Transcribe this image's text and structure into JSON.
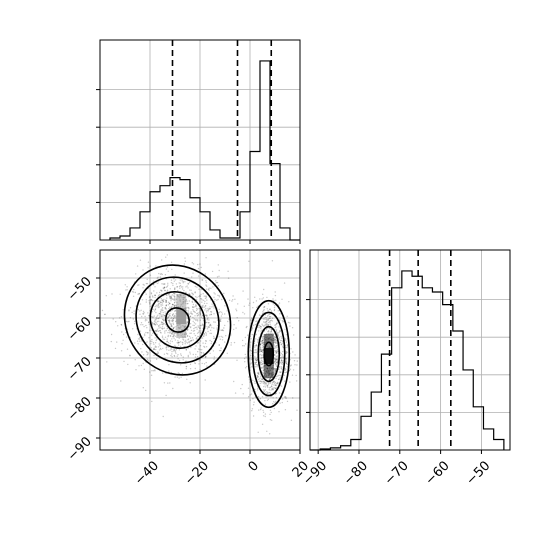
{
  "chart_data": [
    {
      "type": "histogram",
      "panel": "top-left",
      "xlim": [
        -60,
        20
      ],
      "grid": true,
      "x_ticks_shown": false,
      "y_ticks_shown": false,
      "bin_edges": [
        -56,
        -52,
        -48,
        -44,
        -40,
        -36,
        -32,
        -28,
        -24,
        -20,
        -16,
        -12,
        -8,
        -4,
        0,
        4,
        8,
        12,
        16,
        20
      ],
      "counts": [
        1,
        2,
        6,
        14,
        24,
        27,
        31,
        30,
        21,
        14,
        5,
        1,
        1,
        14,
        44,
        89,
        38,
        6,
        0
      ],
      "quantiles": [
        -31,
        -5,
        8.5
      ]
    },
    {
      "type": "scatter",
      "panel": "bottom-left",
      "subtype": "2d-density-with-contours",
      "xlim": [
        -60,
        20
      ],
      "ylim": [
        -93,
        -43
      ],
      "grid": true,
      "x_ticks": [
        -40,
        -20,
        0,
        20
      ],
      "y_ticks": [
        -90,
        -80,
        -70,
        -60,
        -50
      ],
      "clusters": [
        {
          "center": [
            -29,
            -60.5
          ],
          "sd": [
            10,
            6
          ]
        },
        {
          "center": [
            7.5,
            -69
          ],
          "sd": [
            4,
            6.5
          ]
        }
      ],
      "density_peaks": [
        {
          "x": -27.5,
          "y": -59.5,
          "shade": "#9a9a9a"
        },
        {
          "x": 7.5,
          "y": -69.5,
          "shade": "#101010"
        }
      ]
    },
    {
      "type": "histogram",
      "panel": "bottom-right",
      "xlim": [
        -92,
        -43
      ],
      "grid": true,
      "x_ticks": [
        -90,
        -80,
        -70,
        -60,
        -50
      ],
      "y_ticks_shown": false,
      "bin_edges": [
        -92,
        -89.5,
        -87,
        -84.5,
        -82,
        -79.5,
        -77,
        -74.5,
        -72,
        -69.5,
        -67,
        -64.5,
        -62,
        -59.5,
        -57,
        -54.5,
        -52,
        -49.5,
        -47,
        -44.5
      ],
      "counts": [
        0,
        1,
        2,
        4,
        10,
        32,
        55,
        91,
        154,
        170,
        165,
        154,
        150,
        138,
        113,
        76,
        41,
        20,
        10
      ],
      "quantiles": [
        -72.5,
        -65.5,
        -57.5
      ]
    }
  ]
}
